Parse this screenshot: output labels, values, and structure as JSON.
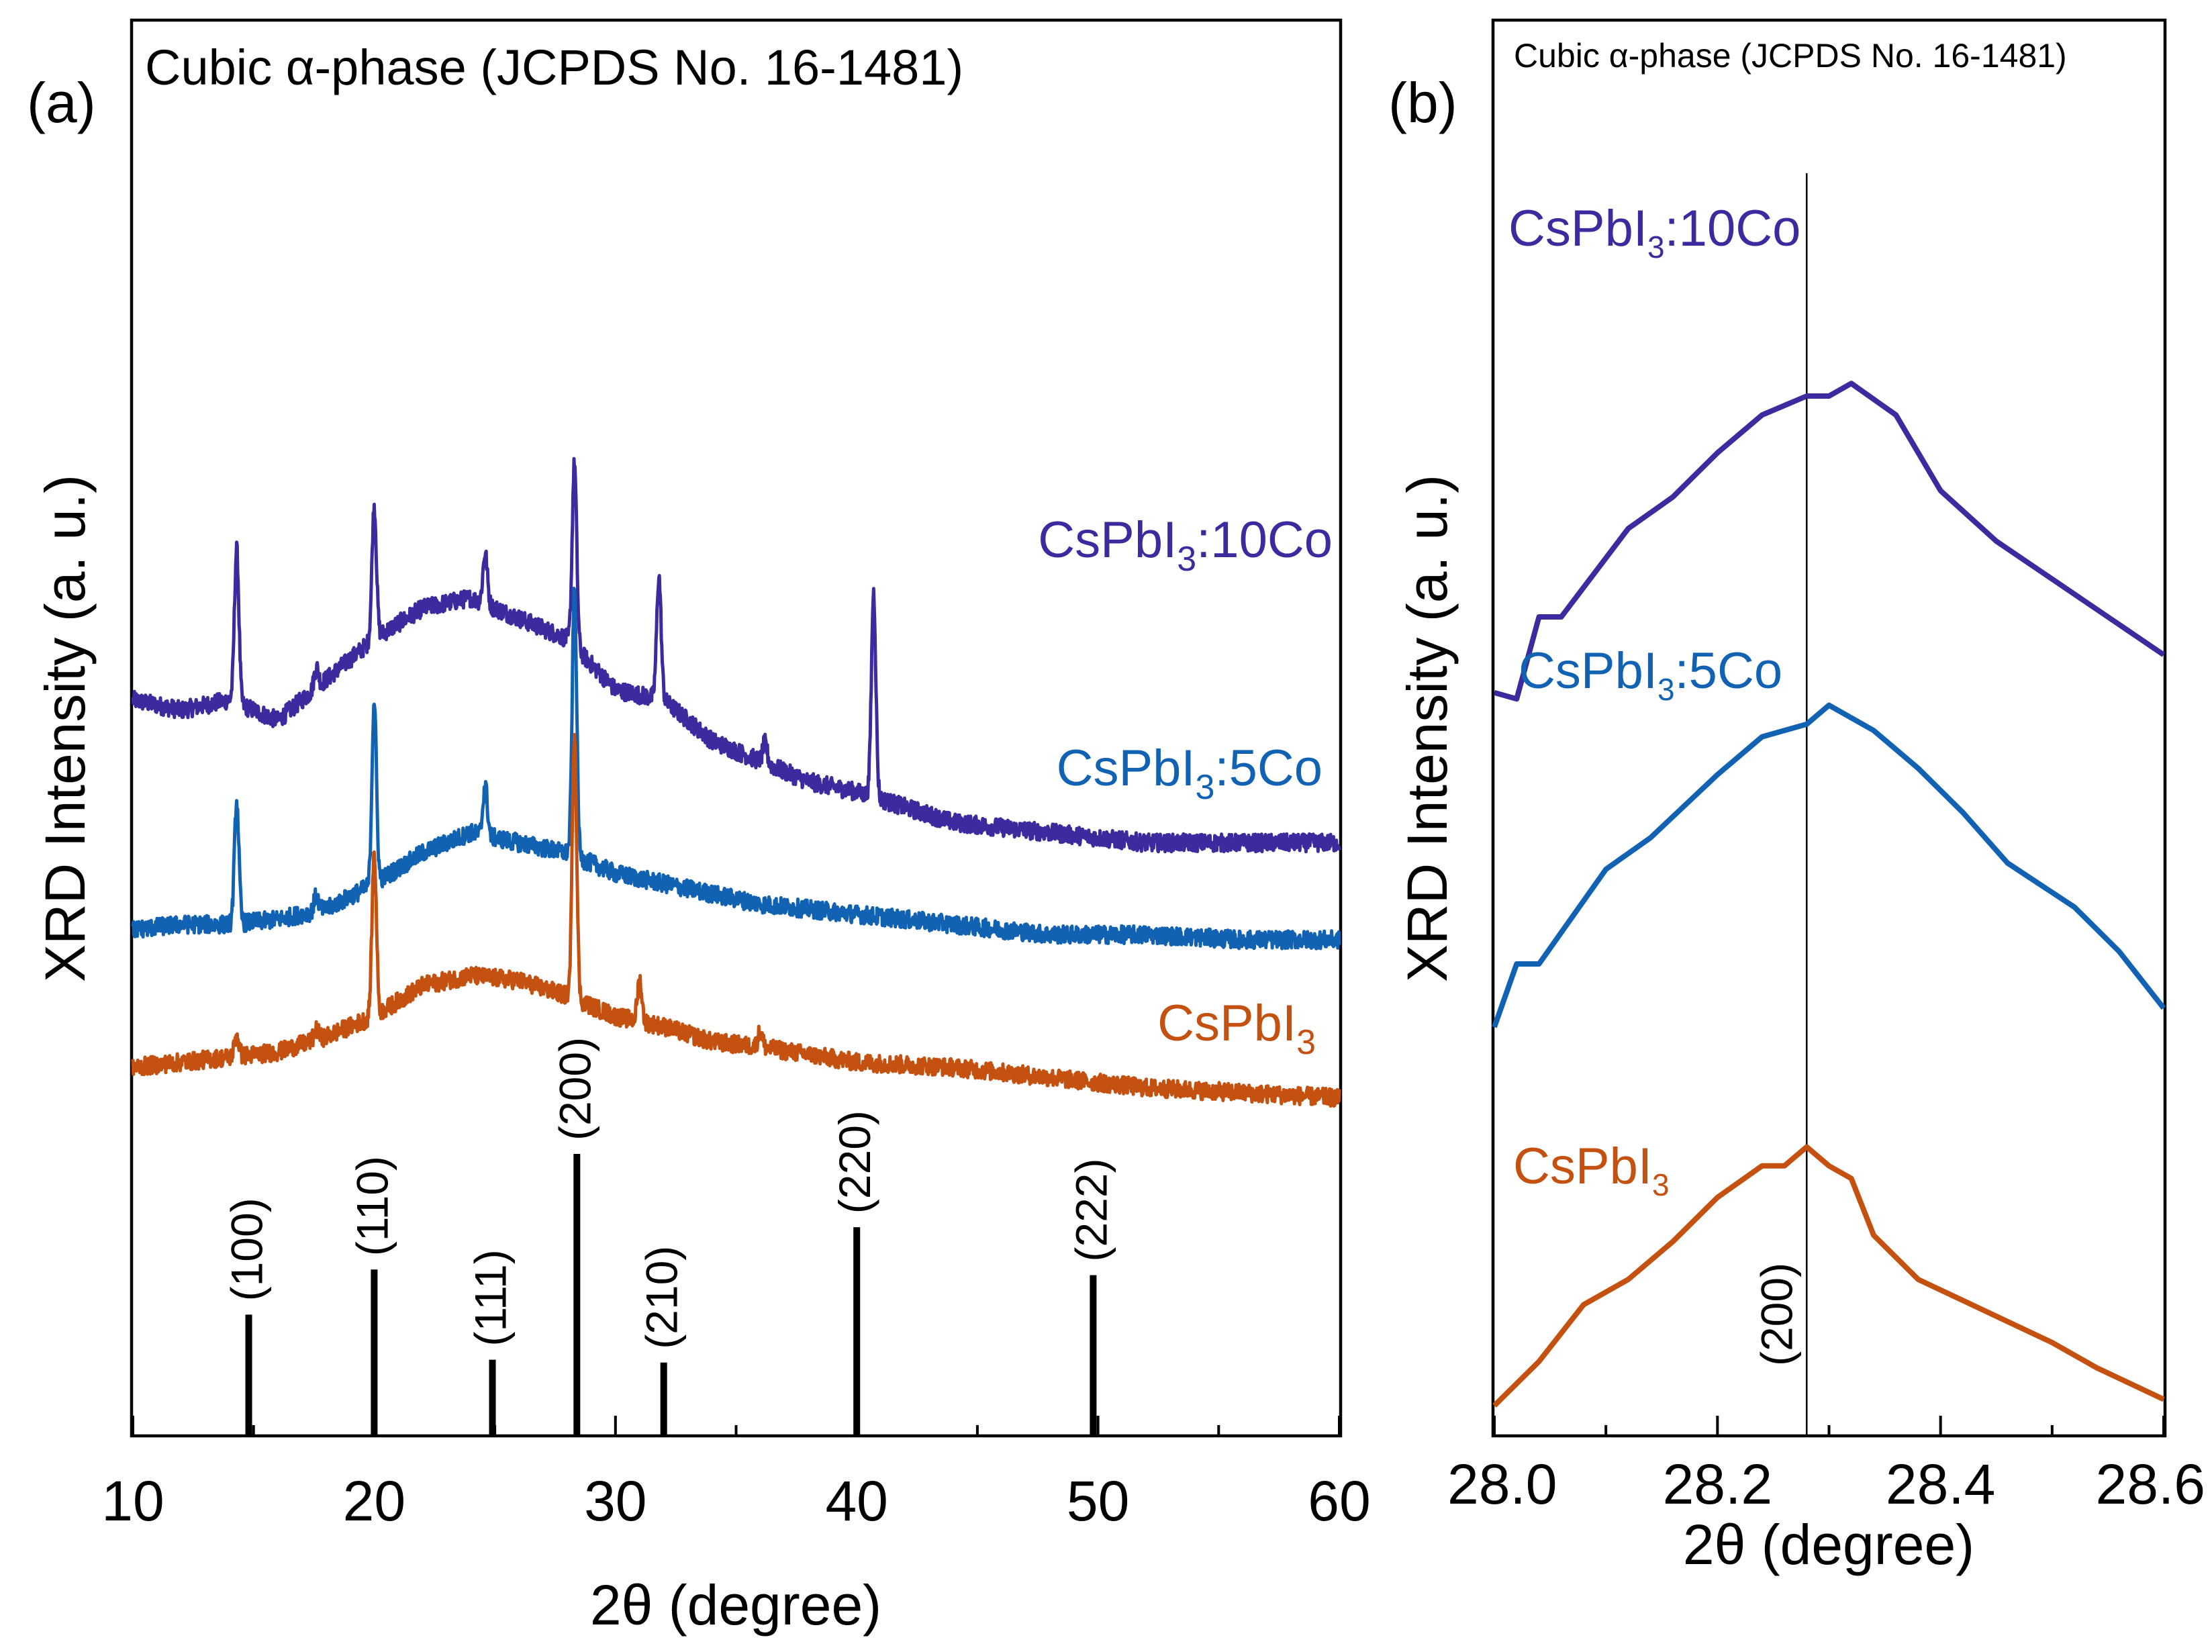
{
  "colors": {
    "CsPbI3": "#c4510f",
    "CsPbI3_5Co": "#1262b3",
    "CsPbI3_10Co": "#3c2a9e",
    "axis": "#000000"
  },
  "chart_data": [
    {
      "type": "line",
      "panel": "(a)",
      "annotation": "Cubic α-phase (JCPDS No. 16-1481)",
      "xlabel": "2θ (degree)",
      "ylabel": "XRD Intensity (a. u.)",
      "xlim": [
        10,
        60
      ],
      "xticks": [
        "10",
        "20",
        "30",
        "40",
        "50",
        "60"
      ],
      "y_axis_ticks": false,
      "legend": "inline labels at right of each curve",
      "series": [
        {
          "name": "CsPbI3:10Co",
          "label_main": "CsPbI",
          "label_sub": "3",
          "label_tail": ":10Co",
          "baseline": [
            [
              10,
              0.72
            ],
            [
              12,
              0.7
            ],
            [
              14,
              0.72
            ],
            [
              16,
              0.68
            ],
            [
              18,
              0.76
            ],
            [
              20,
              0.84
            ],
            [
              22,
              0.9
            ],
            [
              24,
              0.92
            ],
            [
              26,
              0.88
            ],
            [
              28,
              0.84
            ],
            [
              30,
              0.74
            ],
            [
              32,
              0.72
            ],
            [
              34,
              0.64
            ],
            [
              36,
              0.6
            ],
            [
              38,
              0.56
            ],
            [
              40,
              0.54
            ],
            [
              44,
              0.48
            ],
            [
              48,
              0.46
            ],
            [
              52,
              0.44
            ],
            [
              56,
              0.44
            ],
            [
              60,
              0.44
            ]
          ],
          "peaks": [
            [
              14.3,
              0.3
            ],
            [
              20.0,
              0.26
            ],
            [
              24.6,
              0.1
            ],
            [
              28.3,
              0.36
            ],
            [
              31.8,
              0.24
            ],
            [
              40.7,
              0.4
            ],
            [
              17.6,
              0.04
            ],
            [
              36.2,
              0.04
            ]
          ]
        },
        {
          "name": "CsPbI3:5Co",
          "label_main": "CsPbI",
          "label_sub": "3",
          "label_tail": ":5Co",
          "baseline": [
            [
              10,
              0.27
            ],
            [
              12,
              0.28
            ],
            [
              14,
              0.28
            ],
            [
              16,
              0.29
            ],
            [
              18,
              0.31
            ],
            [
              20,
              0.36
            ],
            [
              22,
              0.42
            ],
            [
              24,
              0.46
            ],
            [
              26,
              0.44
            ],
            [
              28,
              0.42
            ],
            [
              30,
              0.38
            ],
            [
              32,
              0.36
            ],
            [
              34,
              0.34
            ],
            [
              36,
              0.32
            ],
            [
              40,
              0.3
            ],
            [
              44,
              0.28
            ],
            [
              48,
              0.26
            ],
            [
              52,
              0.26
            ],
            [
              56,
              0.25
            ],
            [
              60,
              0.25
            ]
          ],
          "peaks": [
            [
              14.3,
              0.24
            ],
            [
              20.0,
              0.36
            ],
            [
              24.6,
              0.1
            ],
            [
              28.3,
              0.52
            ],
            [
              17.6,
              0.03
            ]
          ]
        },
        {
          "name": "CsPbI3",
          "label_main": "CsPbI",
          "label_sub": "3",
          "label_tail": "",
          "baseline": [
            [
              10,
              0.0
            ],
            [
              12,
              0.01
            ],
            [
              14,
              0.02
            ],
            [
              16,
              0.03
            ],
            [
              18,
              0.06
            ],
            [
              20,
              0.1
            ],
            [
              22,
              0.16
            ],
            [
              24,
              0.18
            ],
            [
              26,
              0.17
            ],
            [
              28,
              0.14
            ],
            [
              30,
              0.1
            ],
            [
              32,
              0.08
            ],
            [
              34,
              0.05
            ],
            [
              36,
              0.04
            ],
            [
              40,
              0.01
            ],
            [
              44,
              0.0
            ],
            [
              48,
              -0.02
            ],
            [
              52,
              -0.04
            ],
            [
              56,
              -0.05
            ],
            [
              60,
              -0.06
            ]
          ],
          "peaks": [
            [
              14.3,
              0.04
            ],
            [
              20.0,
              0.32
            ],
            [
              28.3,
              0.52
            ],
            [
              31.0,
              0.08
            ],
            [
              36.0,
              0.03
            ],
            [
              17.6,
              0.02
            ]
          ]
        }
      ],
      "reference": {
        "name": "JCPDS No. 16-1481",
        "peaks": [
          {
            "x": 14.8,
            "height": 0.43,
            "label": "(100)"
          },
          {
            "x": 20.0,
            "height": 0.59,
            "label": "(110)"
          },
          {
            "x": 24.9,
            "height": 0.27,
            "label": "(111)"
          },
          {
            "x": 28.4,
            "height": 1.0,
            "label": "(200)"
          },
          {
            "x": 32.0,
            "height": 0.26,
            "label": "(210)"
          },
          {
            "x": 40.0,
            "height": 0.74,
            "label": "(220)"
          },
          {
            "x": 49.8,
            "height": 0.57,
            "label": "(222)"
          }
        ]
      }
    },
    {
      "type": "line",
      "panel": "(b)",
      "annotation": "Cubic α-phase (JCPDS No. 16-1481)",
      "xlabel": "2θ (degree)",
      "ylabel": "XRD Intensity (a. u.)",
      "xlim": [
        28.0,
        28.6
      ],
      "xticks": [
        "28.0",
        "28.2",
        "28.4",
        "28.6"
      ],
      "y_axis_ticks": false,
      "reference_line": {
        "x": 28.28,
        "label": "(200)"
      },
      "series": [
        {
          "name": "CsPbI3:10Co",
          "label_main": "CsPbI",
          "label_sub": "3",
          "label_tail": ":10Co",
          "points": [
            [
              28.0,
              0.53
            ],
            [
              28.02,
              0.52
            ],
            [
              28.04,
              0.65
            ],
            [
              28.06,
              0.65
            ],
            [
              28.12,
              0.79
            ],
            [
              28.16,
              0.84
            ],
            [
              28.2,
              0.91
            ],
            [
              28.24,
              0.97
            ],
            [
              28.28,
              1.0
            ],
            [
              28.3,
              1.0
            ],
            [
              28.32,
              1.02
            ],
            [
              28.36,
              0.97
            ],
            [
              28.4,
              0.85
            ],
            [
              28.45,
              0.77
            ],
            [
              28.5,
              0.71
            ],
            [
              28.55,
              0.65
            ],
            [
              28.6,
              0.59
            ]
          ]
        },
        {
          "name": "CsPbI3:5Co",
          "label_main": "CsPbI",
          "label_sub": "3",
          "label_tail": ":5Co",
          "points": [
            [
              28.0,
              0.0
            ],
            [
              28.02,
              0.1
            ],
            [
              28.04,
              0.1
            ],
            [
              28.1,
              0.25
            ],
            [
              28.14,
              0.3
            ],
            [
              28.2,
              0.4
            ],
            [
              28.24,
              0.46
            ],
            [
              28.28,
              0.48
            ],
            [
              28.3,
              0.51
            ],
            [
              28.34,
              0.47
            ],
            [
              28.38,
              0.41
            ],
            [
              28.42,
              0.34
            ],
            [
              28.46,
              0.26
            ],
            [
              28.52,
              0.19
            ],
            [
              28.56,
              0.12
            ],
            [
              28.6,
              0.03
            ]
          ]
        },
        {
          "name": "CsPbI3",
          "label_main": "CsPbI",
          "label_sub": "3",
          "label_tail": "",
          "points": [
            [
              28.0,
              -0.6
            ],
            [
              28.04,
              -0.53
            ],
            [
              28.08,
              -0.44
            ],
            [
              28.12,
              -0.4
            ],
            [
              28.16,
              -0.34
            ],
            [
              28.2,
              -0.27
            ],
            [
              28.24,
              -0.22
            ],
            [
              28.26,
              -0.22
            ],
            [
              28.28,
              -0.19
            ],
            [
              28.3,
              -0.22
            ],
            [
              28.32,
              -0.24
            ],
            [
              28.34,
              -0.33
            ],
            [
              28.38,
              -0.4
            ],
            [
              28.44,
              -0.45
            ],
            [
              28.5,
              -0.5
            ],
            [
              28.54,
              -0.54
            ],
            [
              28.6,
              -0.59
            ]
          ]
        }
      ]
    }
  ]
}
